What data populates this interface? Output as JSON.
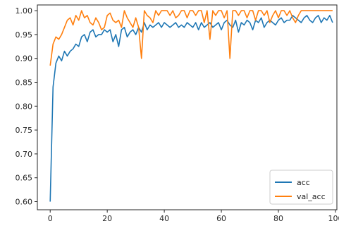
{
  "chart_data": {
    "type": "line",
    "title": "",
    "xlabel": "",
    "ylabel": "",
    "xlim": [
      -4.5,
      100.5
    ],
    "ylim": [
      0.583,
      1.012
    ],
    "x_ticks": [
      0,
      20,
      40,
      60,
      80,
      100
    ],
    "y_ticks": [
      0.6,
      0.65,
      0.7,
      0.75,
      0.8,
      0.85,
      0.9,
      0.95,
      1.0
    ],
    "x_tick_labels": [
      "0",
      "20",
      "40",
      "60",
      "80",
      "100"
    ],
    "y_tick_labels": [
      "0.60",
      "0.65",
      "0.70",
      "0.75",
      "0.80",
      "0.85",
      "0.90",
      "0.95",
      "1.00"
    ],
    "grid": false,
    "legend_position": "lower-right",
    "x": [
      0,
      1,
      2,
      3,
      4,
      5,
      6,
      7,
      8,
      9,
      10,
      11,
      12,
      13,
      14,
      15,
      16,
      17,
      18,
      19,
      20,
      21,
      22,
      23,
      24,
      25,
      26,
      27,
      28,
      29,
      30,
      31,
      32,
      33,
      34,
      35,
      36,
      37,
      38,
      39,
      40,
      41,
      42,
      43,
      44,
      45,
      46,
      47,
      48,
      49,
      50,
      51,
      52,
      53,
      54,
      55,
      56,
      57,
      58,
      59,
      60,
      61,
      62,
      63,
      64,
      65,
      66,
      67,
      68,
      69,
      70,
      71,
      72,
      73,
      74,
      75,
      76,
      77,
      78,
      79,
      80,
      81,
      82,
      83,
      84,
      85,
      86,
      87,
      88,
      89,
      90,
      91,
      92,
      93,
      94,
      95,
      96,
      97,
      98,
      99
    ],
    "series": [
      {
        "name": "acc",
        "color": "#1f77b4",
        "values": [
          0.6,
          0.84,
          0.89,
          0.905,
          0.895,
          0.915,
          0.905,
          0.915,
          0.92,
          0.93,
          0.925,
          0.945,
          0.95,
          0.935,
          0.955,
          0.96,
          0.945,
          0.95,
          0.95,
          0.96,
          0.955,
          0.96,
          0.935,
          0.95,
          0.925,
          0.96,
          0.965,
          0.945,
          0.955,
          0.96,
          0.95,
          0.965,
          0.955,
          0.975,
          0.96,
          0.97,
          0.965,
          0.97,
          0.975,
          0.965,
          0.975,
          0.97,
          0.965,
          0.97,
          0.975,
          0.965,
          0.97,
          0.965,
          0.975,
          0.97,
          0.965,
          0.975,
          0.96,
          0.975,
          0.965,
          0.97,
          0.975,
          0.965,
          0.97,
          0.975,
          0.96,
          0.975,
          0.98,
          0.97,
          0.965,
          0.98,
          0.955,
          0.975,
          0.97,
          0.98,
          0.975,
          0.96,
          0.98,
          0.975,
          0.985,
          0.965,
          0.975,
          0.98,
          0.975,
          0.97,
          0.98,
          0.985,
          0.975,
          0.98,
          0.98,
          0.99,
          0.985,
          0.98,
          0.975,
          0.985,
          0.99,
          0.98,
          0.975,
          0.985,
          0.99,
          0.975,
          0.985,
          0.98,
          0.99,
          0.975
        ]
      },
      {
        "name": "val_acc",
        "color": "#ff7f0e",
        "values": [
          0.885,
          0.93,
          0.945,
          0.94,
          0.95,
          0.965,
          0.98,
          0.985,
          0.97,
          0.99,
          0.98,
          1.0,
          0.985,
          0.99,
          0.975,
          0.97,
          0.985,
          0.975,
          0.96,
          0.965,
          0.99,
          0.995,
          0.98,
          0.975,
          0.98,
          0.965,
          1.0,
          0.985,
          0.975,
          0.965,
          0.985,
          0.965,
          0.9,
          1.0,
          0.99,
          0.985,
          0.975,
          1.0,
          0.99,
          1.0,
          1.0,
          1.0,
          0.99,
          1.0,
          0.985,
          0.99,
          1.0,
          1.0,
          0.985,
          1.0,
          1.0,
          0.99,
          1.0,
          1.0,
          0.975,
          1.0,
          0.94,
          1.0,
          0.99,
          1.0,
          1.0,
          0.985,
          1.0,
          0.9,
          1.0,
          1.0,
          0.99,
          1.0,
          1.0,
          0.985,
          1.0,
          1.0,
          0.98,
          1.0,
          1.0,
          0.99,
          1.0,
          0.975,
          0.99,
          1.0,
          0.985,
          1.0,
          1.0,
          0.99,
          1.0,
          0.985,
          0.975,
          0.99,
          1.0,
          1.0,
          1.0,
          1.0,
          1.0,
          1.0,
          1.0,
          1.0,
          1.0,
          1.0,
          1.0,
          1.0
        ]
      }
    ]
  }
}
